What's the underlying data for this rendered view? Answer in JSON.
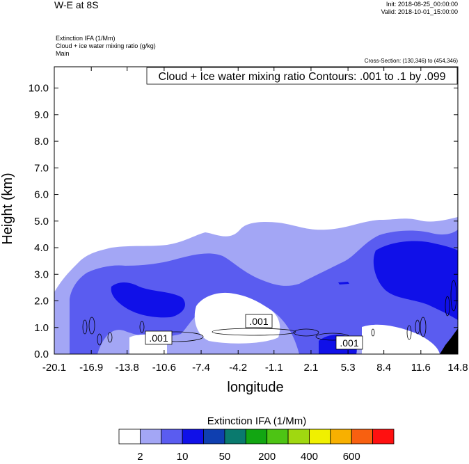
{
  "header": {
    "title": "W-E at 8S",
    "init": "Init: 2018-08-25_00:00:00",
    "valid": "Valid: 2018-10-01_15:00:00",
    "fields": [
      "Extinction IFA   (1/Mm)",
      "Cloud + ice water mixing ratio   (g/kg)",
      "Main"
    ],
    "cross_section": "Cross-Section: (130,346) to (454,346)"
  },
  "chart_data": {
    "type": "contour-cross-section",
    "contour_label": "Cloud + Ice water mixing ratio Contours: .001 to .1 by .099",
    "xlabel": "longitude",
    "ylabel": "Height (km)",
    "xticks": [
      "-20.1",
      "-16.9",
      "-13.8",
      "-10.6",
      "-7.4",
      "-4.2",
      "-1.1",
      "2.1",
      "5.3",
      "8.4",
      "11.6",
      "14.8"
    ],
    "yticks": [
      "0.0",
      "1.0",
      "2.0",
      "3.0",
      "4.0",
      "5.0",
      "6.0",
      "7.0",
      "8.0",
      "9.0",
      "10.0"
    ],
    "xlim": [
      -20.1,
      14.8
    ],
    "ylim": [
      0.0,
      10.8
    ],
    "contour_value_labels": [
      ".001",
      ".001",
      ".001"
    ],
    "colorbar": {
      "title": "Extinction IFA  (1/Mm)",
      "colors": [
        "#ffffff",
        "#a3a6f5",
        "#5a5cf0",
        "#1010e8",
        "#0f3fb0",
        "#0a7a6e",
        "#12a612",
        "#4dc414",
        "#a0d810",
        "#f0f000",
        "#f8b000",
        "#f86010",
        "#ff1010"
      ],
      "labels": [
        "2",
        "10",
        "50",
        "200",
        "400",
        "600"
      ]
    }
  }
}
